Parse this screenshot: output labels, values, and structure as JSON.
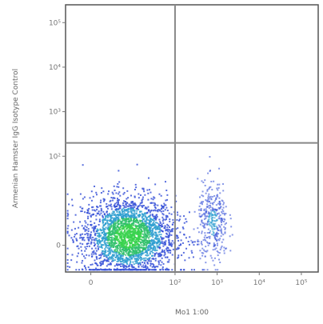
{
  "chart_data": {
    "type": "scatter",
    "title": "",
    "xlabel": "Mo1 1:00",
    "ylabel": "Armenian Hamster IgG Isotype Control",
    "x_ticks": [
      "0",
      "10²",
      "10³",
      "10⁴",
      "10⁵"
    ],
    "y_ticks": [
      "0",
      "10²",
      "10³",
      "10⁴",
      "10⁵"
    ],
    "xlim_decades": [
      -0.6,
      5.4
    ],
    "ylim_decades": [
      -0.6,
      5.4
    ],
    "quadrant_gate": {
      "x": 10.0,
      "y": 5.0
    },
    "populations": [
      {
        "name": "",
        "center": [
          0.9,
          0.2
        ],
        "spread": [
          0.55,
          0.45
        ],
        "density": "high",
        "events": 2600
      },
      {
        "name": "",
        "center": [
          2.9,
          0.5
        ],
        "spread": [
          0.18,
          0.45
        ],
        "density": "low",
        "events": 380
      }
    ],
    "colors": {
      "low": "#3b55d8",
      "mid": "#2f9fd0",
      "high": "#2fbf6a",
      "peak": "#38d24e",
      "gate": "#888888",
      "frame": "#555555"
    }
  }
}
